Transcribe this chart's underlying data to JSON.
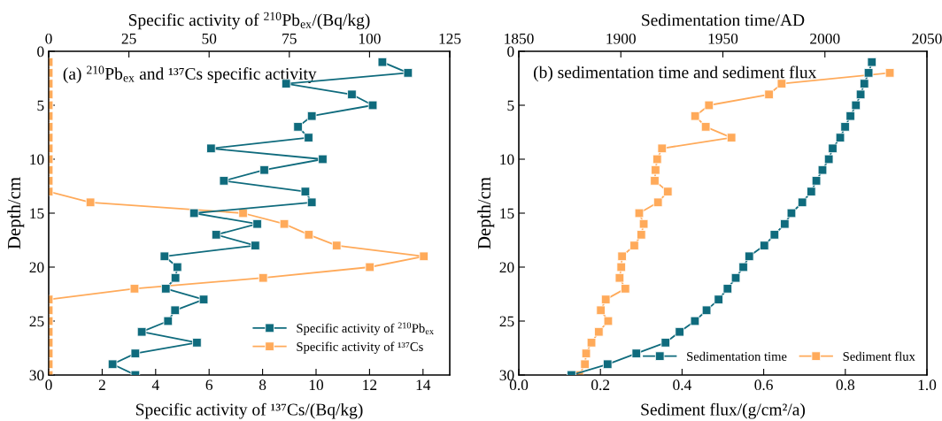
{
  "chart_data": [
    {
      "type": "line",
      "orientation": "horizontal",
      "annotations": [
        "(a) $^{210}$Pb$_{ex}$ and ¹³⁷Cs specific activity"
      ],
      "ylabel": "Depth/cm",
      "xlabel": "Specific activity of ¹³⁷Cs/(Bq/kg)",
      "x2label": "Specific activity of $^{210}$Pb$_{ex}$/(Bq/kg)",
      "x": [
        1,
        2,
        3,
        4,
        5,
        6,
        7,
        8,
        9,
        10,
        11,
        12,
        13,
        14,
        15,
        16,
        17,
        18,
        19,
        20,
        21,
        22,
        23,
        24,
        25,
        26,
        27,
        28,
        29,
        30
      ],
      "ylim": [
        30,
        0
      ],
      "yticks": [
        0,
        5,
        10,
        15,
        20,
        25,
        30
      ],
      "xlim": [
        0,
        15
      ],
      "xticks": [
        0,
        2,
        4,
        6,
        8,
        10,
        12,
        14
      ],
      "x2lim": [
        0,
        125
      ],
      "x2ticks": [
        0,
        25,
        50,
        75,
        100,
        125
      ],
      "marker": "square",
      "line_style": "solid",
      "legend": "bottom right",
      "grid": false,
      "series": [
        {
          "name": "Specific activity of $^{210}$Pb$_{ex}$",
          "color": "#0f6b7d",
          "axis": "x2",
          "values": [
            104,
            112,
            74,
            94.5,
            101,
            82,
            77.7,
            81,
            50.6,
            85.4,
            67.2,
            54.6,
            80,
            82,
            45.3,
            65,
            52.2,
            64.4,
            36.1,
            40.1,
            39.5,
            36.5,
            48.3,
            39.4,
            37.2,
            29,
            46.2,
            27,
            19.9,
            27
          ]
        },
        {
          "name": "Specific activity of ¹³⁷Cs",
          "color": "#ffaa5a",
          "values": [
            0,
            0,
            0,
            0,
            0,
            0,
            0,
            0,
            0,
            0,
            0,
            0,
            0,
            1.56,
            7.27,
            8.81,
            9.73,
            10.77,
            14.03,
            12.01,
            8.02,
            3.21,
            0,
            0,
            0,
            0,
            0,
            0,
            0,
            0
          ]
        }
      ]
    },
    {
      "type": "line",
      "orientation": "horizontal",
      "annotations": [
        "(b) sedimentation time and sediment flux"
      ],
      "ylabel": "Depth/cm",
      "xlabel": "Sediment flux/(g/cm²/a)",
      "x2label": "Sedimentation time/AD",
      "x": [
        1,
        2,
        3,
        4,
        5,
        6,
        7,
        8,
        9,
        10,
        11,
        12,
        13,
        14,
        15,
        16,
        17,
        18,
        19,
        20,
        21,
        22,
        23,
        24,
        25,
        26,
        27,
        28,
        29,
        30
      ],
      "ylim": [
        30,
        0
      ],
      "yticks": [
        0,
        5,
        10,
        15,
        20,
        25,
        30
      ],
      "xlim": [
        0,
        1
      ],
      "xticks": [
        {
          "value": 0,
          "label": "0.0"
        },
        0.2,
        0.4,
        0.6,
        0.8,
        {
          "value": 1,
          "label": "1.0"
        }
      ],
      "x2lim": [
        1850,
        2050
      ],
      "x2ticks": [
        1850,
        1900,
        1950,
        2000,
        2050
      ],
      "marker": "square",
      "line_style": "solid",
      "legend": "bottom right",
      "grid": false,
      "series": [
        {
          "name": "Sedimentation time",
          "color": "#0f6b7d",
          "axis": "x2",
          "values": [
            2023,
            2021.4,
            2019.3,
            2017.5,
            2015.2,
            2012.5,
            2009.9,
            2007.5,
            2003.8,
            2001.9,
            1998.8,
            1995.8,
            1993.3,
            1988.9,
            1983.6,
            1980.3,
            1975.3,
            1970.3,
            1962.9,
            1960,
            1956.3,
            1952.3,
            1947.9,
            1942,
            1936.3,
            1928.8,
            1921.9,
            1907.6,
            1893.5,
            1875.8
          ]
        },
        {
          "name": "Sediment flux",
          "color": "#ffaa5a",
          "values": [
            null,
            0.909,
            0.644,
            0.613,
            0.466,
            0.432,
            0.458,
            0.521,
            0.351,
            0.339,
            0.335,
            0.333,
            0.365,
            0.341,
            0.295,
            0.306,
            0.3,
            0.283,
            0.253,
            0.251,
            0.247,
            0.261,
            0.213,
            0.201,
            0.219,
            0.196,
            0.178,
            0.165,
            0.162,
            0.148
          ]
        }
      ]
    }
  ]
}
